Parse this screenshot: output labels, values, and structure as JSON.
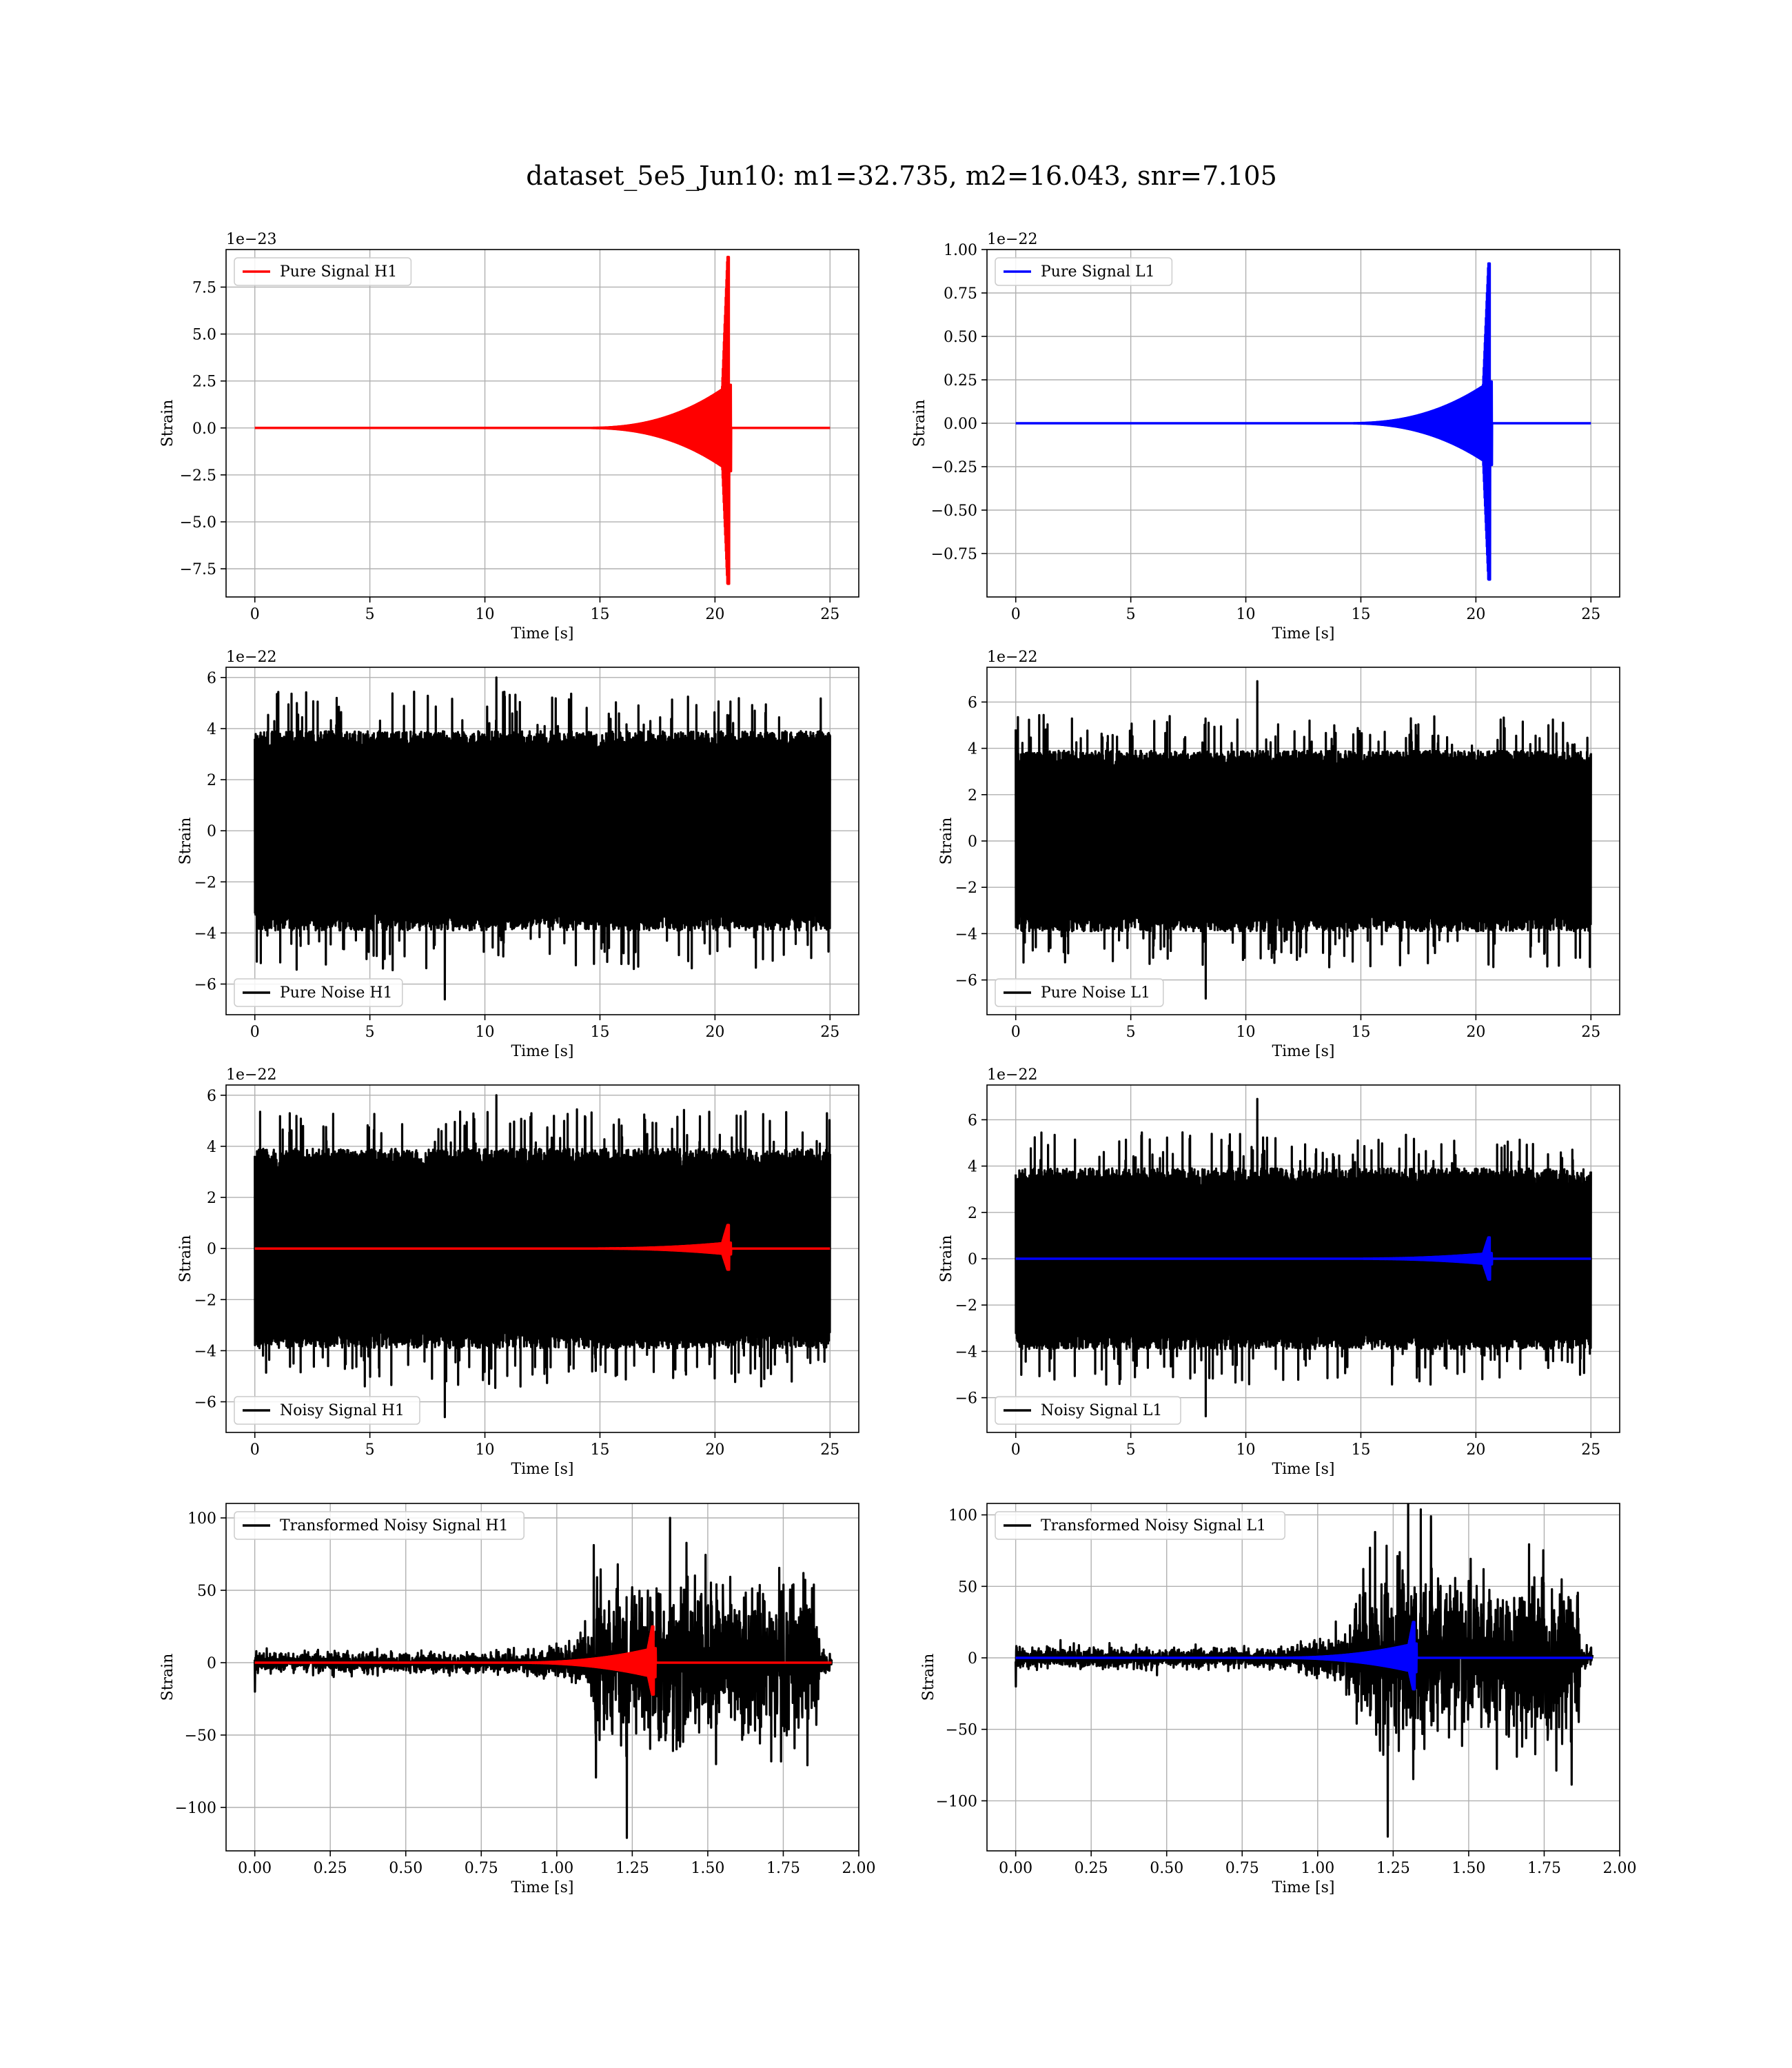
{
  "figure": {
    "title": "dataset_5e5_Jun10: m1=32.735, m2=16.043, snr=7.105"
  },
  "colors": {
    "h1_signal": "#ff0000",
    "l1_signal": "#0000ff",
    "noise": "#000000",
    "grid": "#b0b0b0"
  },
  "chart_data": [
    {
      "type": "line",
      "ylabel": "Strain",
      "xlabel": "Time [s]",
      "offset_text": "1e−23",
      "xlim": [
        -1.25,
        26.25
      ],
      "ylim": [
        -9.0,
        9.5
      ],
      "x_ticks": [
        0,
        5,
        10,
        15,
        20,
        25
      ],
      "x_tick_labels": [
        "0",
        "5",
        "10",
        "15",
        "20",
        "25"
      ],
      "y_ticks": [
        -7.5,
        -5.0,
        -2.5,
        0.0,
        2.5,
        5.0,
        7.5
      ],
      "y_tick_labels": [
        "−7.5",
        "−5.0",
        "−2.5",
        "0.0",
        "2.5",
        "5.0",
        "7.5"
      ],
      "grid": true,
      "legend_position": "upper-left",
      "series": [
        {
          "name": "Pure Signal H1",
          "color": "#ff0000",
          "kind": "chirp",
          "t_start": 0,
          "t_end": 25,
          "t_merger": 20.6,
          "amp_max": 9.1,
          "amp_min": -8.3,
          "amp_plateau": 2.3
        }
      ]
    },
    {
      "type": "line",
      "ylabel": "Strain",
      "xlabel": "Time [s]",
      "offset_text": "1e−22",
      "xlim": [
        -1.25,
        26.25
      ],
      "ylim": [
        -1.0,
        1.0
      ],
      "x_ticks": [
        0,
        5,
        10,
        15,
        20,
        25
      ],
      "x_tick_labels": [
        "0",
        "5",
        "10",
        "15",
        "20",
        "25"
      ],
      "y_ticks": [
        -0.75,
        -0.5,
        -0.25,
        0.0,
        0.25,
        0.5,
        0.75,
        1.0
      ],
      "y_tick_labels": [
        "−0.75",
        "−0.50",
        "−0.25",
        "0.00",
        "0.25",
        "0.50",
        "0.75",
        "1.00"
      ],
      "grid": true,
      "legend_position": "upper-left",
      "series": [
        {
          "name": "Pure Signal L1",
          "color": "#0000ff",
          "kind": "chirp",
          "t_start": 0,
          "t_end": 25,
          "t_merger": 20.6,
          "amp_max": 0.92,
          "amp_min": -0.9,
          "amp_plateau": 0.24
        }
      ]
    },
    {
      "type": "line",
      "ylabel": "Strain",
      "xlabel": "Time [s]",
      "offset_text": "1e−22",
      "xlim": [
        -1.25,
        26.25
      ],
      "ylim": [
        -7.2,
        6.4
      ],
      "x_ticks": [
        0,
        5,
        10,
        15,
        20,
        25
      ],
      "x_tick_labels": [
        "0",
        "5",
        "10",
        "15",
        "20",
        "25"
      ],
      "y_ticks": [
        -6,
        -4,
        -2,
        0,
        2,
        4,
        6
      ],
      "y_tick_labels": [
        "−6",
        "−4",
        "−2",
        "0",
        "2",
        "4",
        "6"
      ],
      "grid": true,
      "legend_position": "lower-left",
      "series": [
        {
          "name": "Pure Noise H1",
          "color": "#000000",
          "kind": "noise",
          "t_start": 0,
          "t_end": 25,
          "band": 3.9,
          "peak_max": 6.0,
          "peak_min": -6.6
        }
      ]
    },
    {
      "type": "line",
      "ylabel": "Strain",
      "xlabel": "Time [s]",
      "offset_text": "1e−22",
      "xlim": [
        -1.25,
        26.25
      ],
      "ylim": [
        -7.5,
        7.5
      ],
      "x_ticks": [
        0,
        5,
        10,
        15,
        20,
        25
      ],
      "x_tick_labels": [
        "0",
        "5",
        "10",
        "15",
        "20",
        "25"
      ],
      "y_ticks": [
        -6,
        -4,
        -2,
        0,
        2,
        4,
        6
      ],
      "y_tick_labels": [
        "−6",
        "−4",
        "−2",
        "0",
        "2",
        "4",
        "6"
      ],
      "grid": true,
      "legend_position": "lower-left",
      "series": [
        {
          "name": "Pure Noise L1",
          "color": "#000000",
          "kind": "noise",
          "t_start": 0,
          "t_end": 25,
          "band": 3.9,
          "peak_max": 6.9,
          "peak_min": -6.8
        }
      ]
    },
    {
      "type": "line",
      "ylabel": "Strain",
      "xlabel": "Time [s]",
      "offset_text": "1e−22",
      "xlim": [
        -1.25,
        26.25
      ],
      "ylim": [
        -7.2,
        6.4
      ],
      "x_ticks": [
        0,
        5,
        10,
        15,
        20,
        25
      ],
      "x_tick_labels": [
        "0",
        "5",
        "10",
        "15",
        "20",
        "25"
      ],
      "y_ticks": [
        -6,
        -4,
        -2,
        0,
        2,
        4,
        6
      ],
      "y_tick_labels": [
        "−6",
        "−4",
        "−2",
        "0",
        "2",
        "4",
        "6"
      ],
      "grid": true,
      "legend_position": "lower-left",
      "series": [
        {
          "name": "Noisy Signal H1",
          "color": "#000000",
          "kind": "noise",
          "t_start": 0,
          "t_end": 25,
          "band": 3.9,
          "peak_max": 6.0,
          "peak_min": -6.6
        },
        {
          "name": "",
          "color": "#ff0000",
          "kind": "chirp",
          "t_start": 0,
          "t_end": 25,
          "t_merger": 20.6,
          "amp_max": 0.92,
          "amp_min": -0.83,
          "amp_plateau": 0.23
        }
      ]
    },
    {
      "type": "line",
      "ylabel": "Strain",
      "xlabel": "Time [s]",
      "offset_text": "1e−22",
      "xlim": [
        -1.25,
        26.25
      ],
      "ylim": [
        -7.5,
        7.5
      ],
      "x_ticks": [
        0,
        5,
        10,
        15,
        20,
        25
      ],
      "x_tick_labels": [
        "0",
        "5",
        "10",
        "15",
        "20",
        "25"
      ],
      "y_ticks": [
        -6,
        -4,
        -2,
        0,
        2,
        4,
        6
      ],
      "y_tick_labels": [
        "−6",
        "−4",
        "−2",
        "0",
        "2",
        "4",
        "6"
      ],
      "grid": true,
      "legend_position": "lower-left",
      "series": [
        {
          "name": "Noisy Signal L1",
          "color": "#000000",
          "kind": "noise",
          "t_start": 0,
          "t_end": 25,
          "band": 3.9,
          "peak_max": 6.9,
          "peak_min": -6.8
        },
        {
          "name": "",
          "color": "#0000ff",
          "kind": "chirp",
          "t_start": 0,
          "t_end": 25,
          "t_merger": 20.6,
          "amp_max": 0.92,
          "amp_min": -0.9,
          "amp_plateau": 0.24
        }
      ]
    },
    {
      "type": "line",
      "ylabel": "Strain",
      "xlabel": "Time [s]",
      "offset_text": "",
      "xlim": [
        -0.095,
        2.0
      ],
      "ylim": [
        -130,
        110
      ],
      "x_ticks": [
        0.0,
        0.25,
        0.5,
        0.75,
        1.0,
        1.25,
        1.5,
        1.75,
        2.0
      ],
      "x_tick_labels": [
        "0.00",
        "0.25",
        "0.50",
        "0.75",
        "1.00",
        "1.25",
        "1.50",
        "1.75",
        "2.00"
      ],
      "y_ticks": [
        -100,
        -50,
        0,
        50,
        100
      ],
      "y_tick_labels": [
        "−100",
        "−50",
        "0",
        "50",
        "100"
      ],
      "grid": true,
      "legend_position": "upper-left",
      "series": [
        {
          "name": "Transformed Noisy Signal H1",
          "color": "#000000",
          "kind": "whitened",
          "t_start": 0,
          "t_end": 1.91,
          "t_rise": 1.12,
          "t_drop": 1.87,
          "low_band": 6,
          "high_band": 45,
          "peak_max": 100,
          "peak_min": -121
        },
        {
          "name": "",
          "color": "#ff0000",
          "kind": "chirp",
          "t_start": 0,
          "t_end": 1.91,
          "t_merger": 1.32,
          "amp_max": 25,
          "amp_min": -22,
          "amp_plateau": 10
        }
      ]
    },
    {
      "type": "line",
      "ylabel": "Strain",
      "xlabel": "Time [s]",
      "offset_text": "",
      "xlim": [
        -0.095,
        2.0
      ],
      "ylim": [
        -135,
        108
      ],
      "x_ticks": [
        0.0,
        0.25,
        0.5,
        0.75,
        1.0,
        1.25,
        1.5,
        1.75,
        2.0
      ],
      "x_tick_labels": [
        "0.00",
        "0.25",
        "0.50",
        "0.75",
        "1.00",
        "1.25",
        "1.50",
        "1.75",
        "2.00"
      ],
      "y_ticks": [
        -100,
        -50,
        0,
        50,
        100
      ],
      "y_tick_labels": [
        "−100",
        "−50",
        "0",
        "50",
        "100"
      ],
      "grid": true,
      "legend_position": "upper-left",
      "series": [
        {
          "name": "Transformed Noisy Signal L1",
          "color": "#000000",
          "kind": "whitened",
          "t_start": 0,
          "t_end": 1.91,
          "t_rise": 1.12,
          "t_drop": 1.87,
          "low_band": 6,
          "high_band": 48,
          "peak_max": 99,
          "peak_min": -125
        },
        {
          "name": "",
          "color": "#0000ff",
          "kind": "chirp",
          "t_start": 0,
          "t_end": 1.91,
          "t_merger": 1.32,
          "amp_max": 25,
          "amp_min": -22,
          "amp_plateau": 10
        }
      ]
    }
  ]
}
